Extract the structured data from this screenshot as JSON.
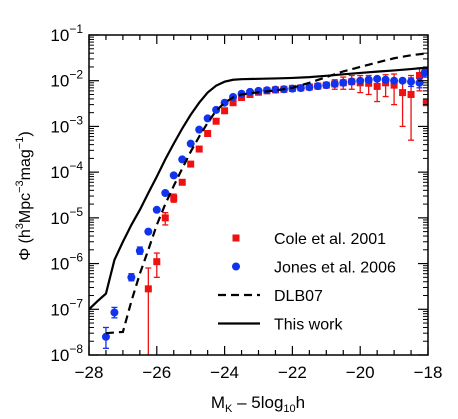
{
  "chart_data": {
    "type": "scatter",
    "xlabel_main": "M",
    "xlabel_sub": "K",
    "xlabel_rest": " – 5log",
    "xlabel_sub2": "10",
    "xlabel_tail": "h",
    "ylabel_parts": [
      "Φ (h",
      "3",
      "Mpc",
      "−3",
      "mag",
      "−1",
      ")"
    ],
    "xlim": [
      -28,
      -18
    ],
    "ylim_log10": [
      -8,
      -1
    ],
    "y_scale": "log",
    "x_ticks": [
      -28,
      -26,
      -24,
      -22,
      -20,
      -18
    ],
    "x_tick_labels": [
      "−28",
      "−26",
      "−24",
      "−22",
      "−20",
      "−18"
    ],
    "y_ticks_exp": [
      -8,
      -7,
      -6,
      -5,
      -4,
      -3,
      -2,
      -1
    ],
    "y_tick_base": "10",
    "y_tick_exp_labels": [
      "−8",
      "−7",
      "−6",
      "−5",
      "−4",
      "−3",
      "−2",
      "−1"
    ],
    "legend_position": "bottom-right",
    "series": [
      {
        "name": "Cole et al. 2001",
        "kind": "points",
        "marker": "square",
        "color": "#ee1111",
        "points": [
          {
            "x": -26.25,
            "y": 2.8e-07,
            "lo": 1e-09,
            "hi": 8e-07
          },
          {
            "x": -26.0,
            "y": 1.1e-06,
            "lo": 5e-07,
            "hi": 1.7e-06
          },
          {
            "x": -25.75,
            "y": 1e-05,
            "lo": 7e-06,
            "hi": 1.3e-05
          },
          {
            "x": -25.5,
            "y": 2.7e-05,
            "lo": 2.2e-05,
            "hi": 3.3e-05
          },
          {
            "x": -25.25,
            "y": 6e-05
          },
          {
            "x": -25.0,
            "y": 0.00015
          },
          {
            "x": -24.75,
            "y": 0.00032
          },
          {
            "x": -24.5,
            "y": 0.0007
          },
          {
            "x": -24.25,
            "y": 0.0013
          },
          {
            "x": -24.0,
            "y": 0.0022
          },
          {
            "x": -23.75,
            "y": 0.0033
          },
          {
            "x": -23.5,
            "y": 0.0043
          },
          {
            "x": -23.25,
            "y": 0.005
          },
          {
            "x": -23.0,
            "y": 0.0056
          },
          {
            "x": -22.75,
            "y": 0.006
          },
          {
            "x": -22.5,
            "y": 0.0063
          },
          {
            "x": -22.25,
            "y": 0.0065
          },
          {
            "x": -22.0,
            "y": 0.0068
          },
          {
            "x": -21.75,
            "y": 0.007
          },
          {
            "x": -21.5,
            "y": 0.0073
          },
          {
            "x": -21.25,
            "y": 0.0076
          },
          {
            "x": -21.0,
            "y": 0.008
          },
          {
            "x": -20.75,
            "y": 0.0085,
            "lo": 0.0065,
            "hi": 0.0105
          },
          {
            "x": -20.5,
            "y": 0.009,
            "lo": 0.0065,
            "hi": 0.012
          },
          {
            "x": -20.25,
            "y": 0.0095,
            "lo": 0.0065,
            "hi": 0.013
          },
          {
            "x": -20.0,
            "y": 0.009,
            "lo": 0.0055,
            "hi": 0.013
          },
          {
            "x": -19.75,
            "y": 0.0088,
            "lo": 0.005,
            "hi": 0.013
          },
          {
            "x": -19.5,
            "y": 0.0075,
            "lo": 0.0035,
            "hi": 0.012
          },
          {
            "x": -19.25,
            "y": 0.009,
            "lo": 0.0045,
            "hi": 0.0135
          },
          {
            "x": -19.0,
            "y": 0.008,
            "lo": 0.003,
            "hi": 0.014
          },
          {
            "x": -18.75,
            "y": 0.0055,
            "lo": 0.001,
            "hi": 0.01
          },
          {
            "x": -18.5,
            "y": 0.005,
            "lo": 0.0005,
            "hi": 0.013
          },
          {
            "x": -18.25,
            "y": 0.013,
            "lo": 0.006,
            "hi": 0.019
          },
          {
            "x": -18.05,
            "y": 0.0033
          }
        ]
      },
      {
        "name": "Jones et al. 2006",
        "kind": "points",
        "marker": "circle",
        "color": "#1133ee",
        "points": [
          {
            "x": -27.5,
            "y": 2.5e-08,
            "lo": 1.4e-08,
            "hi": 4e-08
          },
          {
            "x": -27.25,
            "y": 8.5e-08,
            "lo": 6.5e-08,
            "hi": 1.1e-07
          },
          {
            "x": -26.75,
            "y": 5e-07,
            "lo": 4.2e-07,
            "hi": 6e-07
          },
          {
            "x": -26.5,
            "y": 1.9e-06,
            "lo": 1.6e-06,
            "hi": 2.3e-06
          },
          {
            "x": -26.25,
            "y": 5e-06
          },
          {
            "x": -26.0,
            "y": 1.5e-05
          },
          {
            "x": -25.75,
            "y": 3.5e-05
          },
          {
            "x": -25.5,
            "y": 8.5e-05
          },
          {
            "x": -25.25,
            "y": 0.00019
          },
          {
            "x": -25.0,
            "y": 0.00042
          },
          {
            "x": -24.75,
            "y": 0.00085
          },
          {
            "x": -24.5,
            "y": 0.0015
          },
          {
            "x": -24.25,
            "y": 0.0023
          },
          {
            "x": -24.0,
            "y": 0.0033
          },
          {
            "x": -23.75,
            "y": 0.0044
          },
          {
            "x": -23.5,
            "y": 0.0052
          },
          {
            "x": -23.25,
            "y": 0.0057
          },
          {
            "x": -23.0,
            "y": 0.006
          },
          {
            "x": -22.75,
            "y": 0.0062
          },
          {
            "x": -22.5,
            "y": 0.0064
          },
          {
            "x": -22.25,
            "y": 0.0065
          },
          {
            "x": -22.0,
            "y": 0.0067
          },
          {
            "x": -21.75,
            "y": 0.0069
          },
          {
            "x": -21.5,
            "y": 0.0072
          },
          {
            "x": -21.25,
            "y": 0.0076
          },
          {
            "x": -21.0,
            "y": 0.008
          },
          {
            "x": -20.75,
            "y": 0.0085
          },
          {
            "x": -20.5,
            "y": 0.009
          },
          {
            "x": -20.25,
            "y": 0.0096
          },
          {
            "x": -20.0,
            "y": 0.01
          },
          {
            "x": -19.75,
            "y": 0.0105
          },
          {
            "x": -19.5,
            "y": 0.011
          },
          {
            "x": -19.25,
            "y": 0.0105
          },
          {
            "x": -19.0,
            "y": 0.01
          },
          {
            "x": -18.75,
            "y": 0.01
          },
          {
            "x": -18.5,
            "y": 0.0095,
            "lo": 0.0075,
            "hi": 0.0115
          },
          {
            "x": -18.25,
            "y": 0.009,
            "lo": 0.007,
            "hi": 0.011
          },
          {
            "x": -18.1,
            "y": 0.015,
            "lo": 0.012,
            "hi": 0.018
          }
        ]
      },
      {
        "name": "DLB07",
        "kind": "line",
        "dash": true,
        "color": "#000000",
        "points": [
          [
            -27.5,
            3e-08
          ],
          [
            -27.0,
            3.2e-08
          ],
          [
            -26.75,
            1.5e-07
          ],
          [
            -26.5,
            6e-07
          ],
          [
            -26.25,
            2e-06
          ],
          [
            -26.0,
            7e-06
          ],
          [
            -25.75,
            2e-05
          ],
          [
            -25.5,
            5e-05
          ],
          [
            -25.25,
            0.00012
          ],
          [
            -25.0,
            0.00028
          ],
          [
            -24.75,
            0.0006
          ],
          [
            -24.5,
            0.0012
          ],
          [
            -24.25,
            0.0022
          ],
          [
            -24.0,
            0.0033
          ],
          [
            -23.75,
            0.0043
          ],
          [
            -23.5,
            0.005
          ],
          [
            -23.0,
            0.0056
          ],
          [
            -22.5,
            0.0061
          ],
          [
            -22.0,
            0.007
          ],
          [
            -21.5,
            0.009
          ],
          [
            -21.0,
            0.012
          ],
          [
            -20.5,
            0.016
          ],
          [
            -20.0,
            0.02
          ],
          [
            -19.5,
            0.025
          ],
          [
            -19.0,
            0.031
          ],
          [
            -18.5,
            0.036
          ],
          [
            -18.0,
            0.04
          ]
        ]
      },
      {
        "name": "This work",
        "kind": "line",
        "dash": false,
        "color": "#000000",
        "points": [
          [
            -28.0,
            1e-07
          ],
          [
            -27.75,
            1.5e-07
          ],
          [
            -27.5,
            2.2e-07
          ],
          [
            -27.25,
            1.2e-06
          ],
          [
            -27.0,
            3e-06
          ],
          [
            -26.75,
            7e-06
          ],
          [
            -26.5,
            1.5e-05
          ],
          [
            -26.25,
            3.5e-05
          ],
          [
            -26.0,
            8e-05
          ],
          [
            -25.75,
            0.00019
          ],
          [
            -25.5,
            0.00042
          ],
          [
            -25.25,
            0.0009
          ],
          [
            -25.0,
            0.0018
          ],
          [
            -24.75,
            0.0033
          ],
          [
            -24.5,
            0.0055
          ],
          [
            -24.25,
            0.0078
          ],
          [
            -24.0,
            0.0095
          ],
          [
            -23.75,
            0.0105
          ],
          [
            -23.5,
            0.0108
          ],
          [
            -23.0,
            0.011
          ],
          [
            -22.5,
            0.0112
          ],
          [
            -22.0,
            0.0115
          ],
          [
            -21.5,
            0.012
          ],
          [
            -21.0,
            0.0128
          ],
          [
            -20.5,
            0.0138
          ],
          [
            -20.0,
            0.0148
          ],
          [
            -19.5,
            0.0158
          ],
          [
            -19.0,
            0.0168
          ],
          [
            -18.5,
            0.018
          ],
          [
            -18.0,
            0.0195
          ]
        ]
      }
    ]
  }
}
